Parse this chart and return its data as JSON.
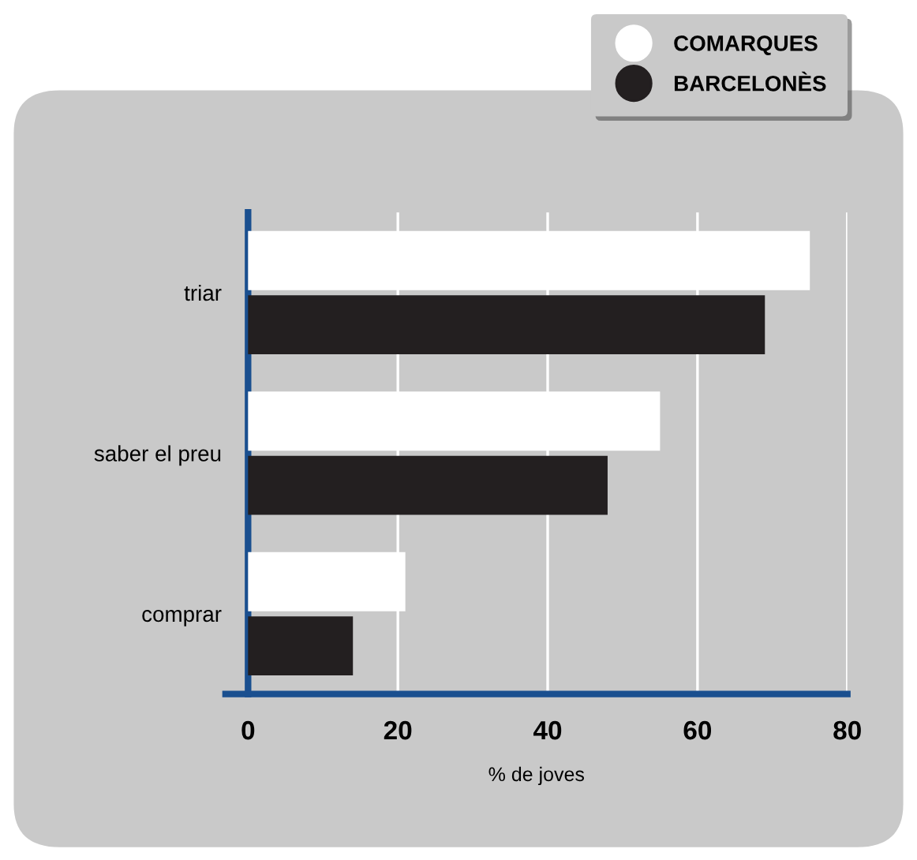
{
  "chart_data": {
    "type": "bar",
    "orientation": "horizontal",
    "categories": [
      "triar",
      "saber el preu",
      "comprar"
    ],
    "series": [
      {
        "name": "COMARQUES",
        "color": "#ffffff",
        "values": [
          75,
          55,
          21
        ]
      },
      {
        "name": "BARCELONÈS",
        "color": "#231f20",
        "values": [
          69,
          48,
          14
        ]
      }
    ],
    "xlabel": "% de joves",
    "xlim": [
      -3,
      80
    ],
    "xticks": [
      0,
      20,
      40,
      60,
      80
    ],
    "grid": "x",
    "legend": "top right"
  }
}
